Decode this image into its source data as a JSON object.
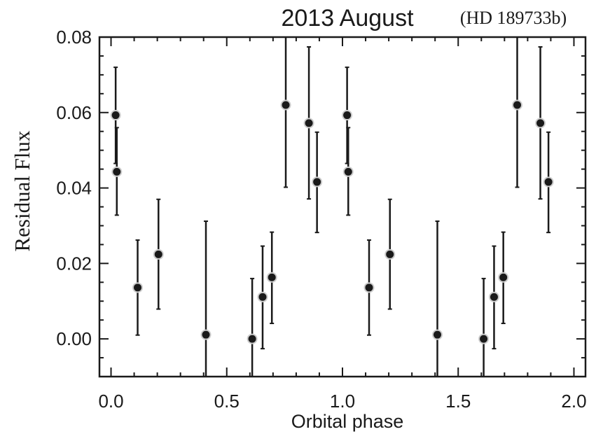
{
  "chart_data": {
    "type": "scatter",
    "title": "2013 August",
    "subtitle": "(HD 189733b)",
    "xlabel": "Orbital phase",
    "ylabel": "Residual Flux",
    "xlim": [
      -0.05,
      2.05
    ],
    "ylim": [
      -0.01,
      0.08
    ],
    "xticks": [
      0.0,
      0.5,
      1.0,
      1.5,
      2.0
    ],
    "xtick_labels": [
      "0.0",
      "0.5",
      "1.0",
      "1.5",
      "2.0"
    ],
    "yticks": [
      0.0,
      0.02,
      0.04,
      0.06,
      0.08
    ],
    "ytick_labels": [
      "0.00",
      "0.02",
      "0.04",
      "0.06",
      "0.08"
    ],
    "grid": false,
    "colors": {
      "marker_fill": "#1a1a1a",
      "marker_edge": "#cccccc",
      "line": "#1a1a1a"
    },
    "points": [
      {
        "x": 0.02,
        "y": 0.0593,
        "lo": 0.0465,
        "hi": 0.072
      },
      {
        "x": 0.025,
        "y": 0.0443,
        "lo": 0.0328,
        "hi": 0.056
      },
      {
        "x": 0.115,
        "y": 0.0136,
        "lo": 0.001,
        "hi": 0.0262
      },
      {
        "x": 0.205,
        "y": 0.0224,
        "lo": 0.0079,
        "hi": 0.037
      },
      {
        "x": 0.41,
        "y": 0.0011,
        "lo": -0.01,
        "hi": 0.0312
      },
      {
        "x": 0.61,
        "y": 0.0,
        "lo": -0.01,
        "hi": 0.016
      },
      {
        "x": 0.655,
        "y": 0.0111,
        "lo": -0.0026,
        "hi": 0.0246
      },
      {
        "x": 0.695,
        "y": 0.0163,
        "lo": 0.0041,
        "hi": 0.0283
      },
      {
        "x": 0.755,
        "y": 0.062,
        "lo": 0.0402,
        "hi": 0.08
      },
      {
        "x": 0.855,
        "y": 0.0572,
        "lo": 0.0371,
        "hi": 0.0774
      },
      {
        "x": 0.89,
        "y": 0.0416,
        "lo": 0.0282,
        "hi": 0.0548
      },
      {
        "x": 1.02,
        "y": 0.0593,
        "lo": 0.0465,
        "hi": 0.072
      },
      {
        "x": 1.025,
        "y": 0.0443,
        "lo": 0.0328,
        "hi": 0.056
      },
      {
        "x": 1.115,
        "y": 0.0136,
        "lo": 0.001,
        "hi": 0.0262
      },
      {
        "x": 1.205,
        "y": 0.0224,
        "lo": 0.0079,
        "hi": 0.037
      },
      {
        "x": 1.41,
        "y": 0.0011,
        "lo": -0.01,
        "hi": 0.0312
      },
      {
        "x": 1.61,
        "y": 0.0,
        "lo": -0.01,
        "hi": 0.016
      },
      {
        "x": 1.655,
        "y": 0.0111,
        "lo": -0.0026,
        "hi": 0.0246
      },
      {
        "x": 1.695,
        "y": 0.0163,
        "lo": 0.0041,
        "hi": 0.0283
      },
      {
        "x": 1.755,
        "y": 0.062,
        "lo": 0.0402,
        "hi": 0.08
      },
      {
        "x": 1.855,
        "y": 0.0572,
        "lo": 0.0371,
        "hi": 0.0774
      },
      {
        "x": 1.89,
        "y": 0.0416,
        "lo": 0.0282,
        "hi": 0.0548
      }
    ]
  }
}
